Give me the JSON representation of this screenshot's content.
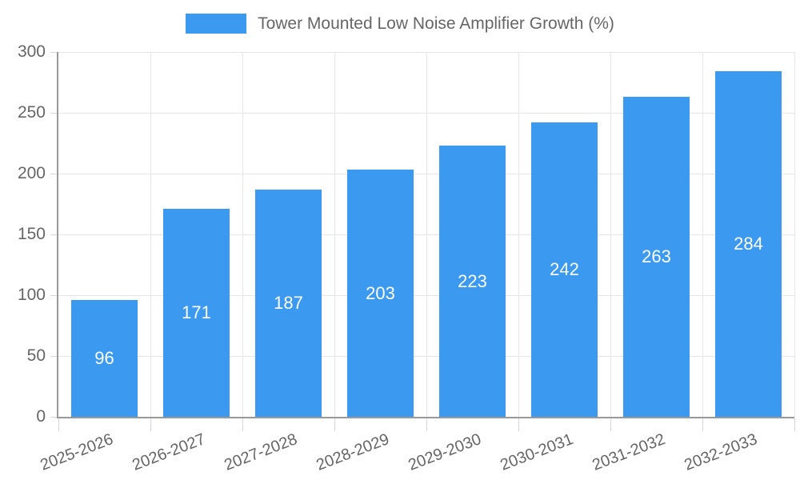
{
  "legend": {
    "label": "Tower Mounted Low Noise Amplifier Growth (%)"
  },
  "chart_data": {
    "type": "bar",
    "title": "Tower Mounted Low Noise Amplifier Growth (%)",
    "categories": [
      "2025-2026",
      "2026-2027",
      "2027-2028",
      "2028-2029",
      "2029-2030",
      "2030-2031",
      "2031-2032",
      "2032-2033"
    ],
    "values": [
      96,
      171,
      187,
      203,
      223,
      242,
      263,
      284
    ],
    "xlabel": "",
    "ylabel": "",
    "ylim": [
      0,
      300
    ],
    "yticks": [
      0,
      50,
      100,
      150,
      200,
      250,
      300
    ],
    "grid": true,
    "legend_position": "top-center",
    "value_labels_position": "centered inside bars"
  },
  "colors": {
    "bar": "#3b99ef",
    "text": "#666666",
    "value_label": "#ffffff",
    "axis": "#999999",
    "grid": "#e6e6e6",
    "tick": "#d6d6d6",
    "background": "#ffffff"
  }
}
